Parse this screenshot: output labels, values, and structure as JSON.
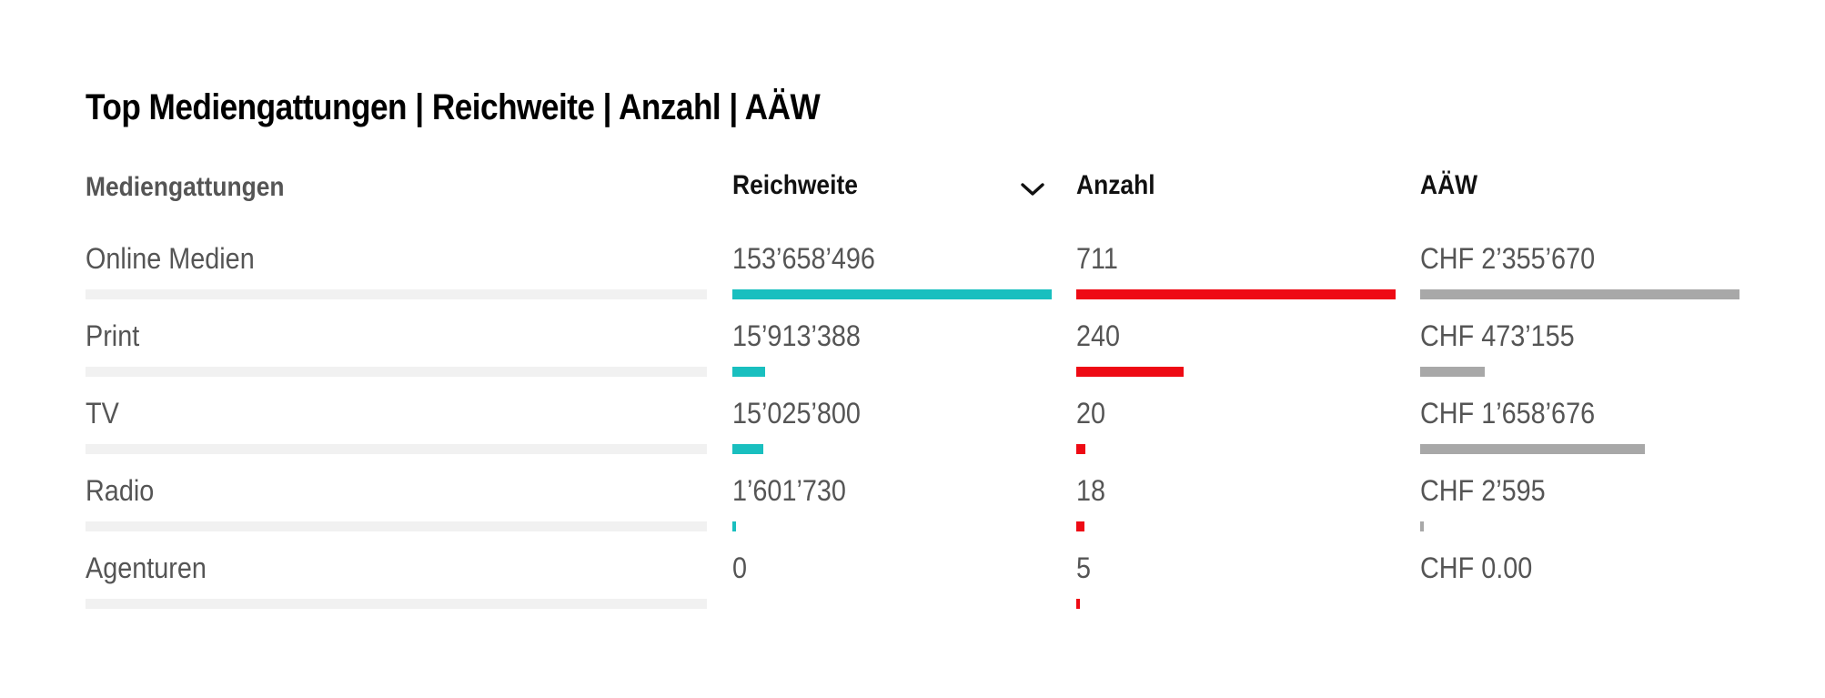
{
  "title": "Top Mediengattungen | Reichweite | Anzahl | AÄW",
  "columns": {
    "name": "Mediengattungen",
    "reach": "Reichweite",
    "count": "Anzahl",
    "aaw": "AÄW"
  },
  "sort": {
    "column": "Reichweite",
    "direction": "descending",
    "icon": "chevron-down-icon"
  },
  "colors": {
    "reach_bar": "#19bfbf",
    "count_bar": "#ee0a14",
    "aaw_bar": "#a8a8a8",
    "track": "#f1f1f1",
    "title": "#000000",
    "text": "#555555"
  },
  "rows": [
    {
      "name": "Online Medien",
      "reach_label": "153’658’496",
      "count_label": "711",
      "aaw_label": "CHF 2’355’670",
      "reach_value": 153658496,
      "count_value": 711,
      "aaw_value": 2355670
    },
    {
      "name": "Print",
      "reach_label": "15’913’388",
      "count_label": "240",
      "aaw_label": "CHF 473’155",
      "reach_value": 15913388,
      "count_value": 240,
      "aaw_value": 473155
    },
    {
      "name": "TV",
      "reach_label": "15’025’800",
      "count_label": "20",
      "aaw_label": "CHF 1’658’676",
      "reach_value": 15025800,
      "count_value": 20,
      "aaw_value": 1658676
    },
    {
      "name": "Radio",
      "reach_label": "1’601’730",
      "count_label": "18",
      "aaw_label": "CHF 2’595",
      "reach_value": 1601730,
      "count_value": 18,
      "aaw_value": 2595
    },
    {
      "name": "Agenturen",
      "reach_label": "0",
      "count_label": "5",
      "aaw_label": "CHF 0.00",
      "reach_value": 0,
      "count_value": 5,
      "aaw_value": 0
    }
  ]
}
